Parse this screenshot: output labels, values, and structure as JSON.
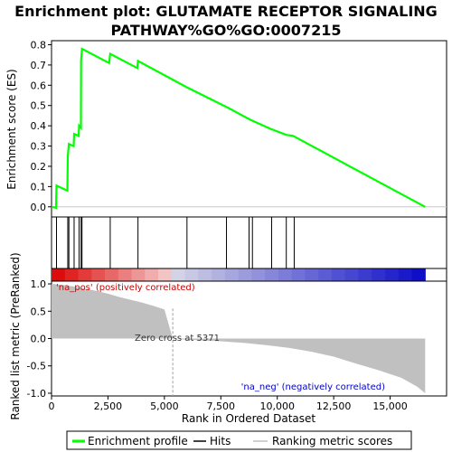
{
  "title_line1": "Enrichment plot: GLUTAMATE RECEPTOR SIGNALING",
  "title_line2": "PATHWAY%GO%GO:0007215",
  "es_ylabel": "Enrichment score (ES)",
  "rm_ylabel": "Ranked list metric (PreRanked)",
  "xlabel": "Rank in Ordered Dataset",
  "pos_label": "'na_pos' (positively correlated)",
  "neg_label": "'na_neg' (negatively correlated)",
  "zero_cross_label": "Zero cross at 5371",
  "legend": {
    "enrichment_profile": "Enrichment profile",
    "hits": "Hits",
    "ranking_metric": "Ranking metric scores"
  },
  "colors": {
    "profile": "#00ff00",
    "hits": "#000000",
    "metric_fill": "#c0c0c0",
    "zero_cross_line": "#a0a0a0"
  },
  "chart_data": [
    {
      "type": "line",
      "name": "enrichment-profile",
      "x_range": [
        0,
        17500
      ],
      "ylim": [
        -0.05,
        0.82
      ],
      "x_ticks": [
        "0",
        "2,500",
        "5,000",
        "7,500",
        "10,000",
        "12,500",
        "15,000"
      ],
      "x_tick_values": [
        0,
        2500,
        5000,
        7500,
        10000,
        12500,
        15000
      ],
      "y_ticks": [
        "0.0",
        "0.1",
        "0.2",
        "0.3",
        "0.4",
        "0.5",
        "0.6",
        "0.7",
        "0.8"
      ],
      "y_tick_values": [
        0.0,
        0.1,
        0.2,
        0.3,
        0.4,
        0.5,
        0.6,
        0.7,
        0.8
      ],
      "points": [
        [
          0,
          0.0
        ],
        [
          200,
          -0.005
        ],
        [
          220,
          0.105
        ],
        [
          700,
          0.08
        ],
        [
          720,
          0.25
        ],
        [
          770,
          0.31
        ],
        [
          980,
          0.3
        ],
        [
          1000,
          0.36
        ],
        [
          1200,
          0.35
        ],
        [
          1220,
          0.4
        ],
        [
          1300,
          0.39
        ],
        [
          1310,
          0.72
        ],
        [
          1350,
          0.78
        ],
        [
          2550,
          0.71
        ],
        [
          2600,
          0.755
        ],
        [
          3800,
          0.685
        ],
        [
          3830,
          0.72
        ],
        [
          6000,
          0.59
        ],
        [
          7800,
          0.49
        ],
        [
          8800,
          0.43
        ],
        [
          9700,
          0.385
        ],
        [
          10400,
          0.355
        ],
        [
          10700,
          0.35
        ],
        [
          16550,
          0.0
        ]
      ]
    },
    {
      "type": "barcode",
      "name": "hits",
      "x": [
        220,
        720,
        770,
        1000,
        1220,
        1310,
        1350,
        2600,
        3830,
        6000,
        7750,
        8750,
        8900,
        9750,
        10400,
        10750
      ]
    },
    {
      "type": "area",
      "name": "ranked-list-metric",
      "ylim": [
        -1.05,
        1.05
      ],
      "y_ticks": [
        "1.0",
        "0.5",
        "0.0",
        "-0.5",
        "-1.0"
      ],
      "y_tick_values": [
        1.0,
        0.5,
        0.0,
        -0.5,
        -1.0
      ],
      "zero_cross": 5371,
      "points": [
        [
          0,
          1.0
        ],
        [
          500,
          0.98
        ],
        [
          1000,
          0.95
        ],
        [
          1500,
          0.91
        ],
        [
          2000,
          0.87
        ],
        [
          2500,
          0.82
        ],
        [
          3000,
          0.76
        ],
        [
          3500,
          0.71
        ],
        [
          4000,
          0.66
        ],
        [
          4500,
          0.6
        ],
        [
          5000,
          0.53
        ],
        [
          5371,
          0.0
        ],
        [
          6000,
          -0.02
        ],
        [
          7500,
          -0.05
        ],
        [
          8500,
          -0.08
        ],
        [
          9500,
          -0.12
        ],
        [
          10500,
          -0.17
        ],
        [
          11500,
          -0.24
        ],
        [
          12500,
          -0.33
        ],
        [
          13500,
          -0.46
        ],
        [
          14500,
          -0.58
        ],
        [
          15500,
          -0.72
        ],
        [
          16200,
          -0.88
        ],
        [
          16550,
          -1.0
        ]
      ]
    }
  ]
}
